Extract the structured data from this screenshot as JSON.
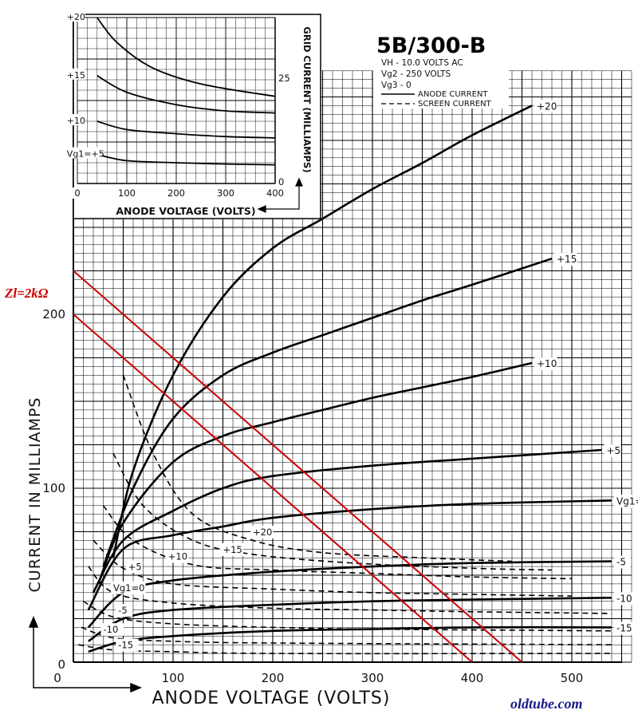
{
  "chart_data": {
    "type": "line",
    "title": "5B/300-B",
    "conditions": [
      "VH - 10.0 VOLTS AC",
      "Vg2 - 250 VOLTS",
      "Vg3 - 0"
    ],
    "legend": [
      "ANODE CURRENT",
      "SCREEN CURRENT"
    ],
    "xlabel": "ANODE VOLTAGE (VOLTS)",
    "ylabel": "CURRENT IN MILLIAMPS",
    "xlim": [
      0,
      560
    ],
    "ylim": [
      0,
      340
    ],
    "x_ticks": [
      "0",
      "100",
      "200",
      "300",
      "400",
      "500"
    ],
    "y_ticks": [
      "0",
      "100",
      "200"
    ],
    "grid": true,
    "anode_curves": [
      {
        "label": "+20",
        "points": [
          [
            40,
            60
          ],
          [
            60,
            110
          ],
          [
            100,
            165
          ],
          [
            150,
            210
          ],
          [
            200,
            238
          ],
          [
            250,
            255
          ],
          [
            300,
            272
          ],
          [
            350,
            287
          ],
          [
            400,
            303
          ],
          [
            460,
            320
          ]
        ]
      },
      {
        "label": "+15",
        "points": [
          [
            30,
            55
          ],
          [
            60,
            100
          ],
          [
            100,
            140
          ],
          [
            150,
            165
          ],
          [
            200,
            178
          ],
          [
            250,
            188
          ],
          [
            300,
            198
          ],
          [
            350,
            208
          ],
          [
            400,
            217
          ],
          [
            480,
            232
          ]
        ]
      },
      {
        "label": "+10",
        "points": [
          [
            25,
            45
          ],
          [
            50,
            80
          ],
          [
            100,
            115
          ],
          [
            150,
            130
          ],
          [
            200,
            138
          ],
          [
            250,
            145
          ],
          [
            300,
            152
          ],
          [
            350,
            158
          ],
          [
            400,
            164
          ],
          [
            460,
            172
          ]
        ]
      },
      {
        "label": "+5",
        "points": [
          [
            20,
            40
          ],
          [
            50,
            70
          ],
          [
            100,
            87
          ],
          [
            150,
            100
          ],
          [
            200,
            107
          ],
          [
            300,
            113
          ],
          [
            400,
            117
          ],
          [
            530,
            122
          ]
        ]
      },
      {
        "label": "Vg1=0",
        "points": [
          [
            15,
            30
          ],
          [
            50,
            65
          ],
          [
            100,
            73
          ],
          [
            150,
            78
          ],
          [
            200,
            83
          ],
          [
            300,
            88
          ],
          [
            400,
            91
          ],
          [
            540,
            93
          ]
        ]
      },
      {
        "label": "-5",
        "points": [
          [
            15,
            20
          ],
          [
            50,
            40
          ],
          [
            100,
            47
          ],
          [
            200,
            52
          ],
          [
            300,
            55
          ],
          [
            400,
            57
          ],
          [
            540,
            58
          ]
        ]
      },
      {
        "label": "-10",
        "points": [
          [
            15,
            12
          ],
          [
            50,
            25
          ],
          [
            100,
            30
          ],
          [
            200,
            33
          ],
          [
            300,
            35
          ],
          [
            400,
            36
          ],
          [
            540,
            37
          ]
        ]
      },
      {
        "label": "-15",
        "points": [
          [
            15,
            6
          ],
          [
            50,
            12
          ],
          [
            100,
            15
          ],
          [
            200,
            18
          ],
          [
            300,
            19
          ],
          [
            400,
            20
          ],
          [
            540,
            20
          ]
        ]
      }
    ],
    "screen_curves": [
      {
        "label": "+20",
        "points": [
          [
            50,
            165
          ],
          [
            80,
            120
          ],
          [
            120,
            85
          ],
          [
            180,
            70
          ],
          [
            250,
            63
          ],
          [
            350,
            60
          ],
          [
            440,
            58
          ]
        ]
      },
      {
        "label": "+15",
        "points": [
          [
            40,
            120
          ],
          [
            70,
            90
          ],
          [
            120,
            70
          ],
          [
            180,
            62
          ],
          [
            280,
            57
          ],
          [
            400,
            54
          ],
          [
            480,
            53
          ]
        ]
      },
      {
        "label": "+10",
        "points": [
          [
            30,
            90
          ],
          [
            60,
            70
          ],
          [
            120,
            56
          ],
          [
            200,
            53
          ],
          [
            300,
            51
          ],
          [
            400,
            49
          ],
          [
            500,
            48
          ]
        ]
      },
      {
        "label": "+5",
        "points": [
          [
            20,
            70
          ],
          [
            50,
            54
          ],
          [
            100,
            45
          ],
          [
            200,
            42
          ],
          [
            300,
            40
          ],
          [
            400,
            39
          ],
          [
            500,
            38
          ]
        ]
      },
      {
        "label": "Vg1=0",
        "points": [
          [
            15,
            55
          ],
          [
            40,
            40
          ],
          [
            100,
            34
          ],
          [
            200,
            31
          ],
          [
            300,
            30
          ],
          [
            400,
            29
          ],
          [
            540,
            28
          ]
        ]
      },
      {
        "label": "-5",
        "points": [
          [
            10,
            35
          ],
          [
            40,
            26
          ],
          [
            100,
            22
          ],
          [
            200,
            20
          ],
          [
            300,
            19
          ],
          [
            540,
            18
          ]
        ]
      },
      {
        "label": "-10",
        "points": [
          [
            8,
            20
          ],
          [
            40,
            14
          ],
          [
            100,
            12
          ],
          [
            200,
            11
          ],
          [
            540,
            10
          ]
        ]
      },
      {
        "label": "-15",
        "points": [
          [
            5,
            10
          ],
          [
            40,
            7
          ],
          [
            100,
            6
          ],
          [
            200,
            5
          ],
          [
            540,
            5
          ]
        ]
      }
    ],
    "load_lines": {
      "label": "Zl=2kΩ",
      "color": "#cc0000",
      "lines": [
        {
          "points": [
            [
              0,
              200
            ],
            [
              400,
              0
            ]
          ]
        },
        {
          "points": [
            [
              0,
              225
            ],
            [
              450,
              0
            ]
          ]
        }
      ]
    },
    "inset": {
      "xlabel": "ANODE VOLTAGE (VOLTS)",
      "ylabel": "GRID CURRENT (MILLIAMPS)",
      "xlim": [
        0,
        400
      ],
      "ylim": [
        0,
        40
      ],
      "x_ticks": [
        "0",
        "100",
        "200",
        "300",
        "400"
      ],
      "y_ticks": [
        "0",
        "25"
      ],
      "curves": [
        {
          "label": "+20",
          "points": [
            [
              40,
              40
            ],
            [
              80,
              34
            ],
            [
              150,
              28
            ],
            [
              250,
              24
            ],
            [
              400,
              21
            ]
          ]
        },
        {
          "label": "+15",
          "points": [
            [
              40,
              26
            ],
            [
              100,
              22
            ],
            [
              200,
              19
            ],
            [
              300,
              17.5
            ],
            [
              400,
              17
            ]
          ]
        },
        {
          "label": "+10",
          "points": [
            [
              40,
              15
            ],
            [
              100,
              13
            ],
            [
              200,
              12
            ],
            [
              300,
              11.3
            ],
            [
              400,
              11
            ]
          ]
        },
        {
          "label": "Vg1=+5",
          "points": [
            [
              40,
              7
            ],
            [
              100,
              5.5
            ],
            [
              200,
              5
            ],
            [
              300,
              4.7
            ],
            [
              400,
              4.5
            ]
          ]
        }
      ]
    },
    "watermark": "oldtube.com"
  }
}
